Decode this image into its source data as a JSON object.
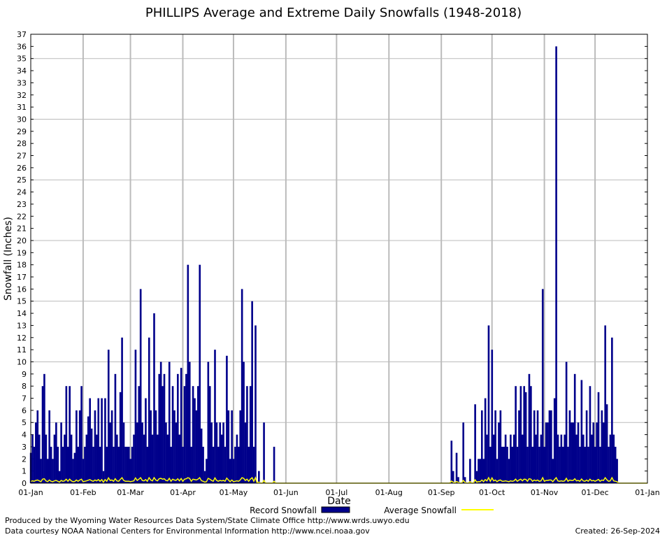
{
  "chart_data": {
    "type": "bar",
    "title": "PHILLIPS Average and Extreme Daily Snowfalls (1948-2018)",
    "xlabel": "Date",
    "ylabel": "Snowfall (Inches)",
    "ylim": [
      0,
      37
    ],
    "y_ticks": [
      0,
      1,
      2,
      3,
      4,
      5,
      6,
      7,
      8,
      9,
      10,
      11,
      12,
      13,
      14,
      15,
      16,
      17,
      18,
      19,
      20,
      21,
      22,
      23,
      24,
      25,
      26,
      27,
      28,
      29,
      30,
      31,
      32,
      33,
      34,
      35,
      36,
      37
    ],
    "x_ticks": [
      {
        "label": "01-Jan",
        "day": 1
      },
      {
        "label": "01-Feb",
        "day": 32
      },
      {
        "label": "01-Mar",
        "day": 60
      },
      {
        "label": "01-Apr",
        "day": 91
      },
      {
        "label": "01-May",
        "day": 121
      },
      {
        "label": "01-Jun",
        "day": 152
      },
      {
        "label": "01-Jul",
        "day": 182
      },
      {
        "label": "01-Aug",
        "day": 213
      },
      {
        "label": "01-Sep",
        "day": 244
      },
      {
        "label": "01-Oct",
        "day": 274
      },
      {
        "label": "01-Nov",
        "day": 305
      },
      {
        "label": "01-Dec",
        "day": 335
      },
      {
        "label": "01-Jan",
        "day": 366
      }
    ],
    "grid": true,
    "series": [
      {
        "name": "Record Snowfall",
        "color": "#00008b",
        "style": "bar",
        "points": [
          [
            1,
            2.5
          ],
          [
            2,
            4
          ],
          [
            3,
            3
          ],
          [
            4,
            5
          ],
          [
            5,
            6
          ],
          [
            6,
            4
          ],
          [
            7,
            2
          ],
          [
            8,
            8
          ],
          [
            9,
            9
          ],
          [
            10,
            4
          ],
          [
            11,
            2
          ],
          [
            12,
            6
          ],
          [
            13,
            3
          ],
          [
            14,
            2
          ],
          [
            15,
            4
          ],
          [
            16,
            5
          ],
          [
            17,
            3
          ],
          [
            18,
            1
          ],
          [
            19,
            5
          ],
          [
            20,
            3
          ],
          [
            21,
            4
          ],
          [
            22,
            8
          ],
          [
            23,
            3
          ],
          [
            24,
            8
          ],
          [
            25,
            4
          ],
          [
            26,
            2
          ],
          [
            27,
            2.5
          ],
          [
            28,
            6
          ],
          [
            29,
            3
          ],
          [
            30,
            6
          ],
          [
            31,
            8
          ],
          [
            32,
            2
          ],
          [
            33,
            3
          ],
          [
            34,
            4
          ],
          [
            35,
            5.5
          ],
          [
            36,
            7
          ],
          [
            37,
            4.5
          ],
          [
            38,
            3
          ],
          [
            39,
            6
          ],
          [
            40,
            4
          ],
          [
            41,
            7
          ],
          [
            42,
            3
          ],
          [
            43,
            7
          ],
          [
            44,
            1
          ],
          [
            45,
            7
          ],
          [
            46,
            3
          ],
          [
            47,
            11
          ],
          [
            48,
            5
          ],
          [
            49,
            6
          ],
          [
            50,
            3
          ],
          [
            51,
            9
          ],
          [
            52,
            4
          ],
          [
            53,
            3
          ],
          [
            54,
            7.5
          ],
          [
            55,
            12
          ],
          [
            56,
            5
          ],
          [
            57,
            3
          ],
          [
            58,
            3
          ],
          [
            59,
            3
          ],
          [
            60,
            2
          ],
          [
            61,
            3
          ],
          [
            62,
            4
          ],
          [
            63,
            11
          ],
          [
            64,
            5
          ],
          [
            65,
            8
          ],
          [
            66,
            16
          ],
          [
            67,
            5
          ],
          [
            68,
            4
          ],
          [
            69,
            7
          ],
          [
            70,
            3
          ],
          [
            71,
            12
          ],
          [
            72,
            6
          ],
          [
            73,
            4
          ],
          [
            74,
            14
          ],
          [
            75,
            6
          ],
          [
            76,
            4
          ],
          [
            77,
            9
          ],
          [
            78,
            10
          ],
          [
            79,
            8
          ],
          [
            80,
            9
          ],
          [
            81,
            5
          ],
          [
            82,
            4
          ],
          [
            83,
            10
          ],
          [
            84,
            3
          ],
          [
            85,
            8
          ],
          [
            86,
            6
          ],
          [
            87,
            5
          ],
          [
            88,
            9
          ],
          [
            89,
            4
          ],
          [
            90,
            9.5
          ],
          [
            91,
            3
          ],
          [
            92,
            8
          ],
          [
            93,
            9
          ],
          [
            94,
            18
          ],
          [
            95,
            10
          ],
          [
            96,
            3
          ],
          [
            97,
            8
          ],
          [
            98,
            7
          ],
          [
            99,
            6
          ],
          [
            100,
            8
          ],
          [
            101,
            18
          ],
          [
            102,
            4.5
          ],
          [
            103,
            3
          ],
          [
            104,
            1
          ],
          [
            105,
            2
          ],
          [
            106,
            10
          ],
          [
            107,
            8
          ],
          [
            108,
            5
          ],
          [
            109,
            3
          ],
          [
            110,
            11
          ],
          [
            111,
            5
          ],
          [
            112,
            3
          ],
          [
            113,
            5
          ],
          [
            114,
            4
          ],
          [
            115,
            5
          ],
          [
            116,
            3
          ],
          [
            117,
            10.5
          ],
          [
            118,
            6
          ],
          [
            119,
            2
          ],
          [
            120,
            6
          ],
          [
            121,
            2
          ],
          [
            122,
            3
          ],
          [
            123,
            4
          ],
          [
            124,
            3
          ],
          [
            125,
            6
          ],
          [
            126,
            16
          ],
          [
            127,
            10
          ],
          [
            128,
            5
          ],
          [
            129,
            8
          ],
          [
            130,
            3
          ],
          [
            131,
            8
          ],
          [
            132,
            15
          ],
          [
            133,
            3
          ],
          [
            134,
            13
          ],
          [
            135,
            0
          ],
          [
            136,
            1
          ],
          [
            137,
            0
          ],
          [
            138,
            0
          ],
          [
            139,
            5
          ],
          [
            140,
            0
          ],
          [
            141,
            0
          ],
          [
            142,
            0
          ],
          [
            143,
            0
          ],
          [
            144,
            0
          ],
          [
            145,
            3
          ],
          [
            250,
            3.5
          ],
          [
            251,
            1
          ],
          [
            252,
            0
          ],
          [
            253,
            2.5
          ],
          [
            254,
            0.5
          ],
          [
            255,
            0
          ],
          [
            256,
            0
          ],
          [
            257,
            5
          ],
          [
            258,
            0.5
          ],
          [
            259,
            0
          ],
          [
            260,
            0
          ],
          [
            261,
            2
          ],
          [
            262,
            0
          ],
          [
            263,
            0
          ],
          [
            264,
            6.5
          ],
          [
            265,
            1
          ],
          [
            266,
            2
          ],
          [
            267,
            2
          ],
          [
            268,
            6
          ],
          [
            269,
            2
          ],
          [
            270,
            7
          ],
          [
            271,
            4
          ],
          [
            272,
            13
          ],
          [
            273,
            3
          ],
          [
            274,
            11
          ],
          [
            275,
            4
          ],
          [
            276,
            6
          ],
          [
            277,
            2
          ],
          [
            278,
            5
          ],
          [
            279,
            6
          ],
          [
            280,
            3
          ],
          [
            281,
            3
          ],
          [
            282,
            4
          ],
          [
            283,
            3
          ],
          [
            284,
            2
          ],
          [
            285,
            4
          ],
          [
            286,
            3
          ],
          [
            287,
            4
          ],
          [
            288,
            8
          ],
          [
            289,
            3
          ],
          [
            290,
            6
          ],
          [
            291,
            8
          ],
          [
            292,
            4
          ],
          [
            293,
            8
          ],
          [
            294,
            7.5
          ],
          [
            295,
            3
          ],
          [
            296,
            9
          ],
          [
            297,
            8
          ],
          [
            298,
            3
          ],
          [
            299,
            6
          ],
          [
            300,
            4
          ],
          [
            301,
            6
          ],
          [
            302,
            3
          ],
          [
            303,
            4
          ],
          [
            304,
            16
          ],
          [
            305,
            3
          ],
          [
            306,
            5
          ],
          [
            307,
            5
          ],
          [
            308,
            6
          ],
          [
            309,
            6
          ],
          [
            310,
            2
          ],
          [
            311,
            7
          ],
          [
            312,
            36
          ],
          [
            313,
            4
          ],
          [
            314,
            3
          ],
          [
            315,
            4
          ],
          [
            316,
            3
          ],
          [
            317,
            4
          ],
          [
            318,
            10
          ],
          [
            319,
            3
          ],
          [
            320,
            6
          ],
          [
            321,
            5
          ],
          [
            322,
            5
          ],
          [
            323,
            9
          ],
          [
            324,
            4
          ],
          [
            325,
            5
          ],
          [
            326,
            3
          ],
          [
            327,
            8.5
          ],
          [
            328,
            4
          ],
          [
            329,
            3
          ],
          [
            330,
            6
          ],
          [
            331,
            3
          ],
          [
            332,
            8
          ],
          [
            333,
            4
          ],
          [
            334,
            5
          ],
          [
            335,
            3
          ],
          [
            336,
            5
          ],
          [
            337,
            7.5
          ],
          [
            338,
            3
          ],
          [
            339,
            6
          ],
          [
            340,
            5
          ],
          [
            341,
            13
          ],
          [
            342,
            6.5
          ],
          [
            343,
            3
          ],
          [
            344,
            4
          ],
          [
            345,
            12
          ],
          [
            346,
            4
          ],
          [
            347,
            3
          ],
          [
            348,
            2
          ]
        ]
      },
      {
        "name": "Average Snowfall",
        "color": "#ffff00",
        "style": "line"
      }
    ]
  },
  "footer": {
    "line1": "Produced by the Wyoming Water Resources Data System/State Climate Office http://www.wrds.uwyo.edu",
    "line2": "Data courtesy NOAA National Centers for Environmental Information http://www.ncei.noaa.gov",
    "created": "Created: 26-Sep-2024"
  }
}
